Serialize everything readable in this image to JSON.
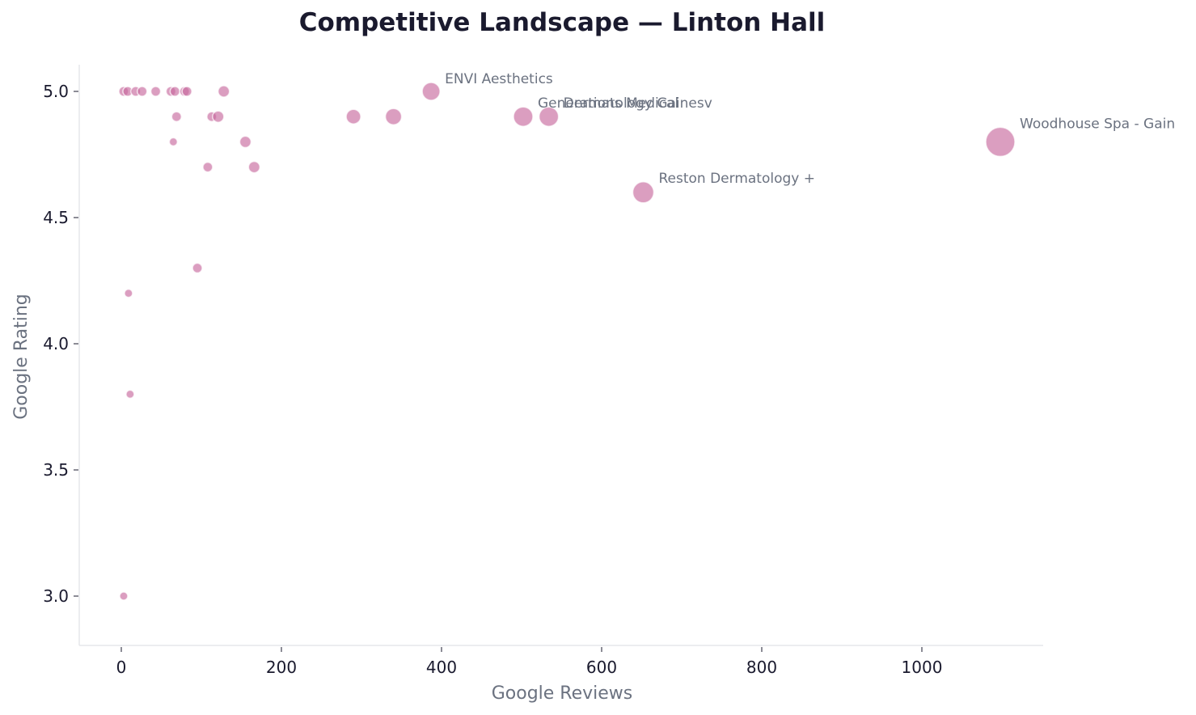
{
  "chart_data": {
    "type": "scatter",
    "title": "Competitive Landscape — Linton Hall",
    "xlabel": "Google Reviews",
    "ylabel": "Google Rating",
    "xlim": [
      -50,
      1155
    ],
    "ylim": [
      2.8,
      5.1
    ],
    "xticks": [
      0,
      200,
      400,
      600,
      800,
      1000
    ],
    "yticks": [
      3.0,
      3.5,
      4.0,
      4.5,
      5.0
    ],
    "grid": false,
    "marker_color": "#c86a9e",
    "points": [
      {
        "x": 3,
        "y": 5.0,
        "size": 6
      },
      {
        "x": 8,
        "y": 5.0,
        "size": 6
      },
      {
        "x": 18,
        "y": 5.0,
        "size": 6
      },
      {
        "x": 26,
        "y": 5.0,
        "size": 6
      },
      {
        "x": 43,
        "y": 5.0,
        "size": 6
      },
      {
        "x": 62,
        "y": 5.0,
        "size": 6
      },
      {
        "x": 67,
        "y": 5.0,
        "size": 6
      },
      {
        "x": 79,
        "y": 5.0,
        "size": 6
      },
      {
        "x": 82,
        "y": 5.0,
        "size": 6
      },
      {
        "x": 128,
        "y": 5.0,
        "size": 7
      },
      {
        "x": 387,
        "y": 5.0,
        "size": 11,
        "label": "ENVI Aesthetics"
      },
      {
        "x": 69,
        "y": 4.9,
        "size": 6
      },
      {
        "x": 113,
        "y": 4.9,
        "size": 6
      },
      {
        "x": 121,
        "y": 4.9,
        "size": 7
      },
      {
        "x": 290,
        "y": 4.9,
        "size": 9
      },
      {
        "x": 340,
        "y": 4.9,
        "size": 10
      },
      {
        "x": 502,
        "y": 4.9,
        "size": 12,
        "label": "Generations Medical"
      },
      {
        "x": 534,
        "y": 4.9,
        "size": 12,
        "label": "Dermatology Gainesv"
      },
      {
        "x": 65,
        "y": 4.8,
        "size": 5
      },
      {
        "x": 155,
        "y": 4.8,
        "size": 7
      },
      {
        "x": 1098,
        "y": 4.8,
        "size": 18,
        "label": "Woodhouse Spa - Gain"
      },
      {
        "x": 108,
        "y": 4.7,
        "size": 6
      },
      {
        "x": 166,
        "y": 4.7,
        "size": 7
      },
      {
        "x": 652,
        "y": 4.6,
        "size": 13,
        "label": "Reston Dermatology +"
      },
      {
        "x": 95,
        "y": 4.3,
        "size": 6
      },
      {
        "x": 9,
        "y": 4.2,
        "size": 5
      },
      {
        "x": 11,
        "y": 3.8,
        "size": 5
      },
      {
        "x": 3,
        "y": 3.0,
        "size": 5
      }
    ]
  }
}
